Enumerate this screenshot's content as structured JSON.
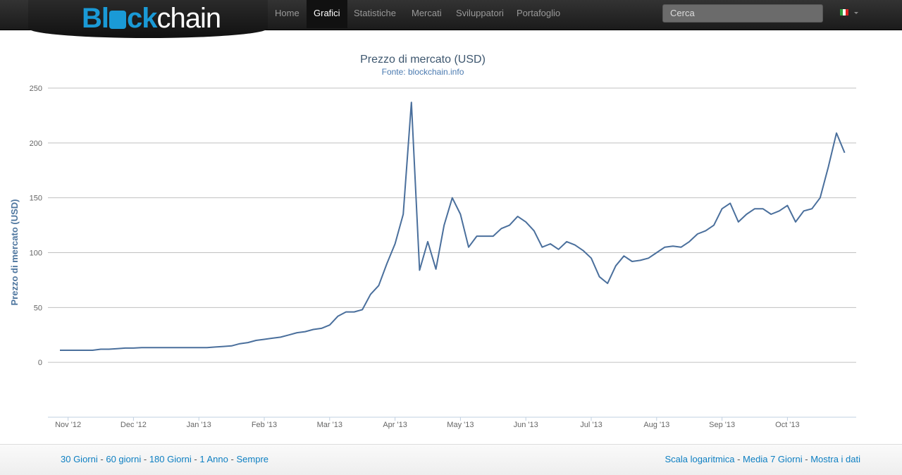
{
  "logo": {
    "part1": "Bl",
    "part2": "ck",
    "part3": "chain"
  },
  "nav": {
    "items": [
      "Home",
      "Grafici",
      "Statistiche",
      "Mercati",
      "Sviluppatori",
      "Portafoglio"
    ],
    "active": 1,
    "search_placeholder": "Cerca"
  },
  "chart_data": {
    "type": "line",
    "title": "Prezzo di mercato (USD)",
    "subtitle": "Fonte: blockchain.info",
    "y_label": "Prezzo di mercato (USD)",
    "categories": [
      null,
      "Nov '12",
      null,
      null,
      null,
      null,
      null,
      null,
      null,
      "Dec '12",
      null,
      null,
      null,
      null,
      null,
      null,
      null,
      "Jan '13",
      null,
      null,
      null,
      null,
      null,
      null,
      null,
      "Feb '13",
      null,
      null,
      null,
      null,
      null,
      null,
      null,
      "Mar '13",
      null,
      null,
      null,
      null,
      null,
      null,
      null,
      "Apr '13",
      null,
      null,
      null,
      null,
      null,
      null,
      null,
      "May '13",
      null,
      null,
      null,
      null,
      null,
      null,
      null,
      "Jun '13",
      null,
      null,
      null,
      null,
      null,
      null,
      null,
      "Jul '13",
      null,
      null,
      null,
      null,
      null,
      null,
      null,
      "Aug '13",
      null,
      null,
      null,
      null,
      null,
      null,
      null,
      "Sep '13",
      null,
      null,
      null,
      null,
      null,
      null,
      null,
      "Oct '13",
      null,
      null,
      null,
      null,
      null,
      null,
      null
    ],
    "series": [
      {
        "name": "Prezzo di mercato (USD)",
        "color": "#4a6f9c",
        "values": [
          11,
          11,
          11,
          11,
          11,
          12,
          12,
          12.5,
          13,
          13,
          13.5,
          13.5,
          13.5,
          13.5,
          13.5,
          13.5,
          13.5,
          13.5,
          13.5,
          14,
          14.5,
          15,
          17,
          18,
          20,
          21,
          22,
          23,
          25,
          27,
          28,
          30,
          31,
          34,
          42,
          46,
          46,
          48,
          62,
          70,
          90,
          108,
          135,
          237,
          84,
          110,
          85,
          125,
          150,
          135,
          105,
          115,
          115,
          115,
          122,
          125,
          133,
          128,
          120,
          105,
          108,
          103,
          110,
          107,
          102,
          95,
          78,
          72,
          88,
          97,
          92,
          93,
          95,
          100,
          105,
          106,
          105,
          110,
          117,
          120,
          125,
          140,
          145,
          128,
          135,
          140,
          140,
          135,
          138,
          143,
          128,
          138,
          140,
          150,
          178,
          209,
          191
        ]
      }
    ],
    "ylim": [
      -50,
      250
    ],
    "yticks": [
      0,
      50,
      100,
      150,
      200,
      250
    ],
    "grid": true
  },
  "footer": {
    "left": [
      "30 Giorni",
      "60 giorni",
      "180 Giorni",
      "1 Anno",
      "Sempre"
    ],
    "right": [
      "Scala logaritmica",
      "Media 7 Giorni",
      "Mostra i dati"
    ],
    "separator": "-"
  }
}
